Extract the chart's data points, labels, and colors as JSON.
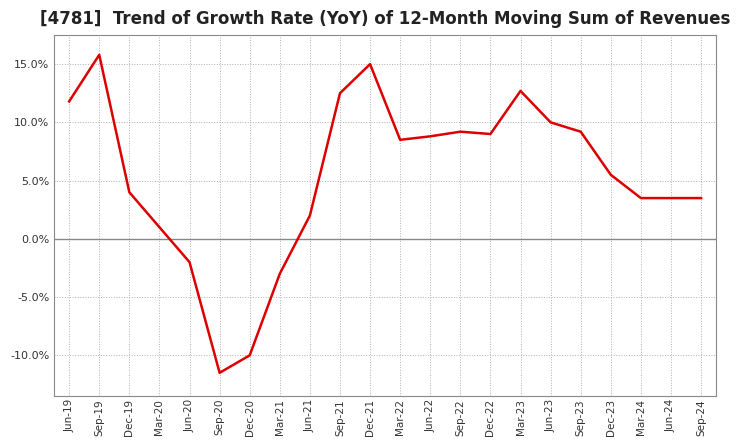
{
  "title": "[4781]  Trend of Growth Rate (YoY) of 12-Month Moving Sum of Revenues",
  "title_fontsize": 12,
  "line_color": "#dd0000",
  "line_width": 1.8,
  "background_color": "#ffffff",
  "plot_bg_color": "#ffffff",
  "grid_color": "#b0b0b0",
  "ylim": [
    -0.135,
    0.175
  ],
  "yticks": [
    -0.1,
    -0.05,
    0.0,
    0.05,
    0.1,
    0.15
  ],
  "x_labels": [
    "Jun-19",
    "Sep-19",
    "Dec-19",
    "Mar-20",
    "Jun-20",
    "Sep-20",
    "Dec-20",
    "Mar-21",
    "Jun-21",
    "Sep-21",
    "Dec-21",
    "Mar-22",
    "Jun-22",
    "Sep-22",
    "Dec-22",
    "Mar-23",
    "Jun-23",
    "Sep-23",
    "Dec-23",
    "Mar-24",
    "Jun-24",
    "Sep-24"
  ],
  "y_values": [
    0.118,
    0.158,
    0.04,
    0.01,
    -0.02,
    -0.115,
    -0.1,
    -0.03,
    0.02,
    0.125,
    0.15,
    0.085,
    0.088,
    0.092,
    0.09,
    0.127,
    0.1,
    0.092,
    0.055,
    0.035,
    0.035,
    0.035
  ]
}
